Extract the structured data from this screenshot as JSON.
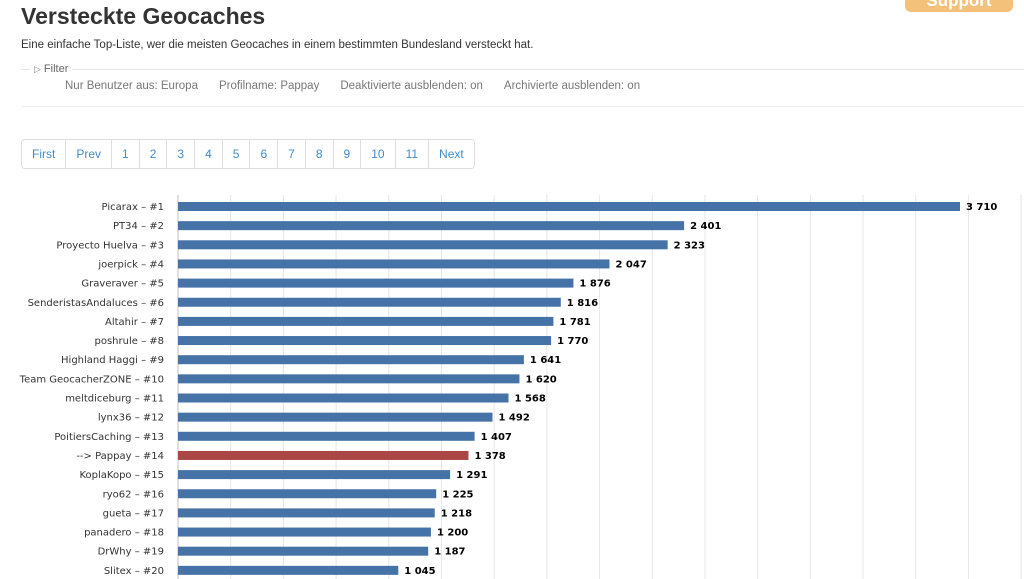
{
  "support": {
    "label": "Support"
  },
  "header": {
    "title": "Versteckte Geocaches",
    "description": "Eine einfache Top-Liste, wer die meisten Geocaches in einem bestimmten Bundesland versteckt hat."
  },
  "filter": {
    "legend": "Filter",
    "items": [
      "Nur Benutzer aus: Europa",
      "Profilname: Pappay",
      "Deaktivierte ausblenden: on",
      "Archivierte ausblenden: on"
    ]
  },
  "pagination": [
    "First",
    "Prev",
    "1",
    "2",
    "3",
    "4",
    "5",
    "6",
    "7",
    "8",
    "9",
    "10",
    "11",
    "Next"
  ],
  "colors": {
    "bar": "#4572a7",
    "highlight": "#aa4643",
    "grid": "#e6e6e6"
  },
  "chart_data": {
    "type": "bar",
    "orientation": "horizontal",
    "categories": [
      "Picarax – #1",
      "PT34 – #2",
      "Proyecto Huelva – #3",
      "joerpick – #4",
      "Graveraver – #5",
      "SenderistasAndaluces – #6",
      "Altahir – #7",
      "poshrule – #8",
      "Highland Haggi – #9",
      "Team GeocacherZONE – #10",
      "meltdiceburg – #11",
      "lynx36 – #12",
      "PoitiersCaching – #13",
      "--> Pappay – #14",
      "KoplaKopo – #15",
      "ryo62 – #16",
      "gueta – #17",
      "panadero – #18",
      "DrWhy – #19",
      "Slitex – #20"
    ],
    "values": [
      3710,
      2401,
      2323,
      2047,
      1876,
      1816,
      1781,
      1770,
      1641,
      1620,
      1568,
      1492,
      1407,
      1378,
      1291,
      1225,
      1218,
      1200,
      1187,
      1045
    ],
    "value_labels": [
      "3 710",
      "2 401",
      "2 323",
      "2 047",
      "1 876",
      "1 816",
      "1 781",
      "1 770",
      "1 641",
      "1 620",
      "1 568",
      "1 492",
      "1 407",
      "1 378",
      "1 291",
      "1 225",
      "1 218",
      "1 200",
      "1 187",
      "1 045"
    ],
    "highlight_index": 13,
    "xlim": [
      0,
      4000
    ],
    "grid": true
  }
}
